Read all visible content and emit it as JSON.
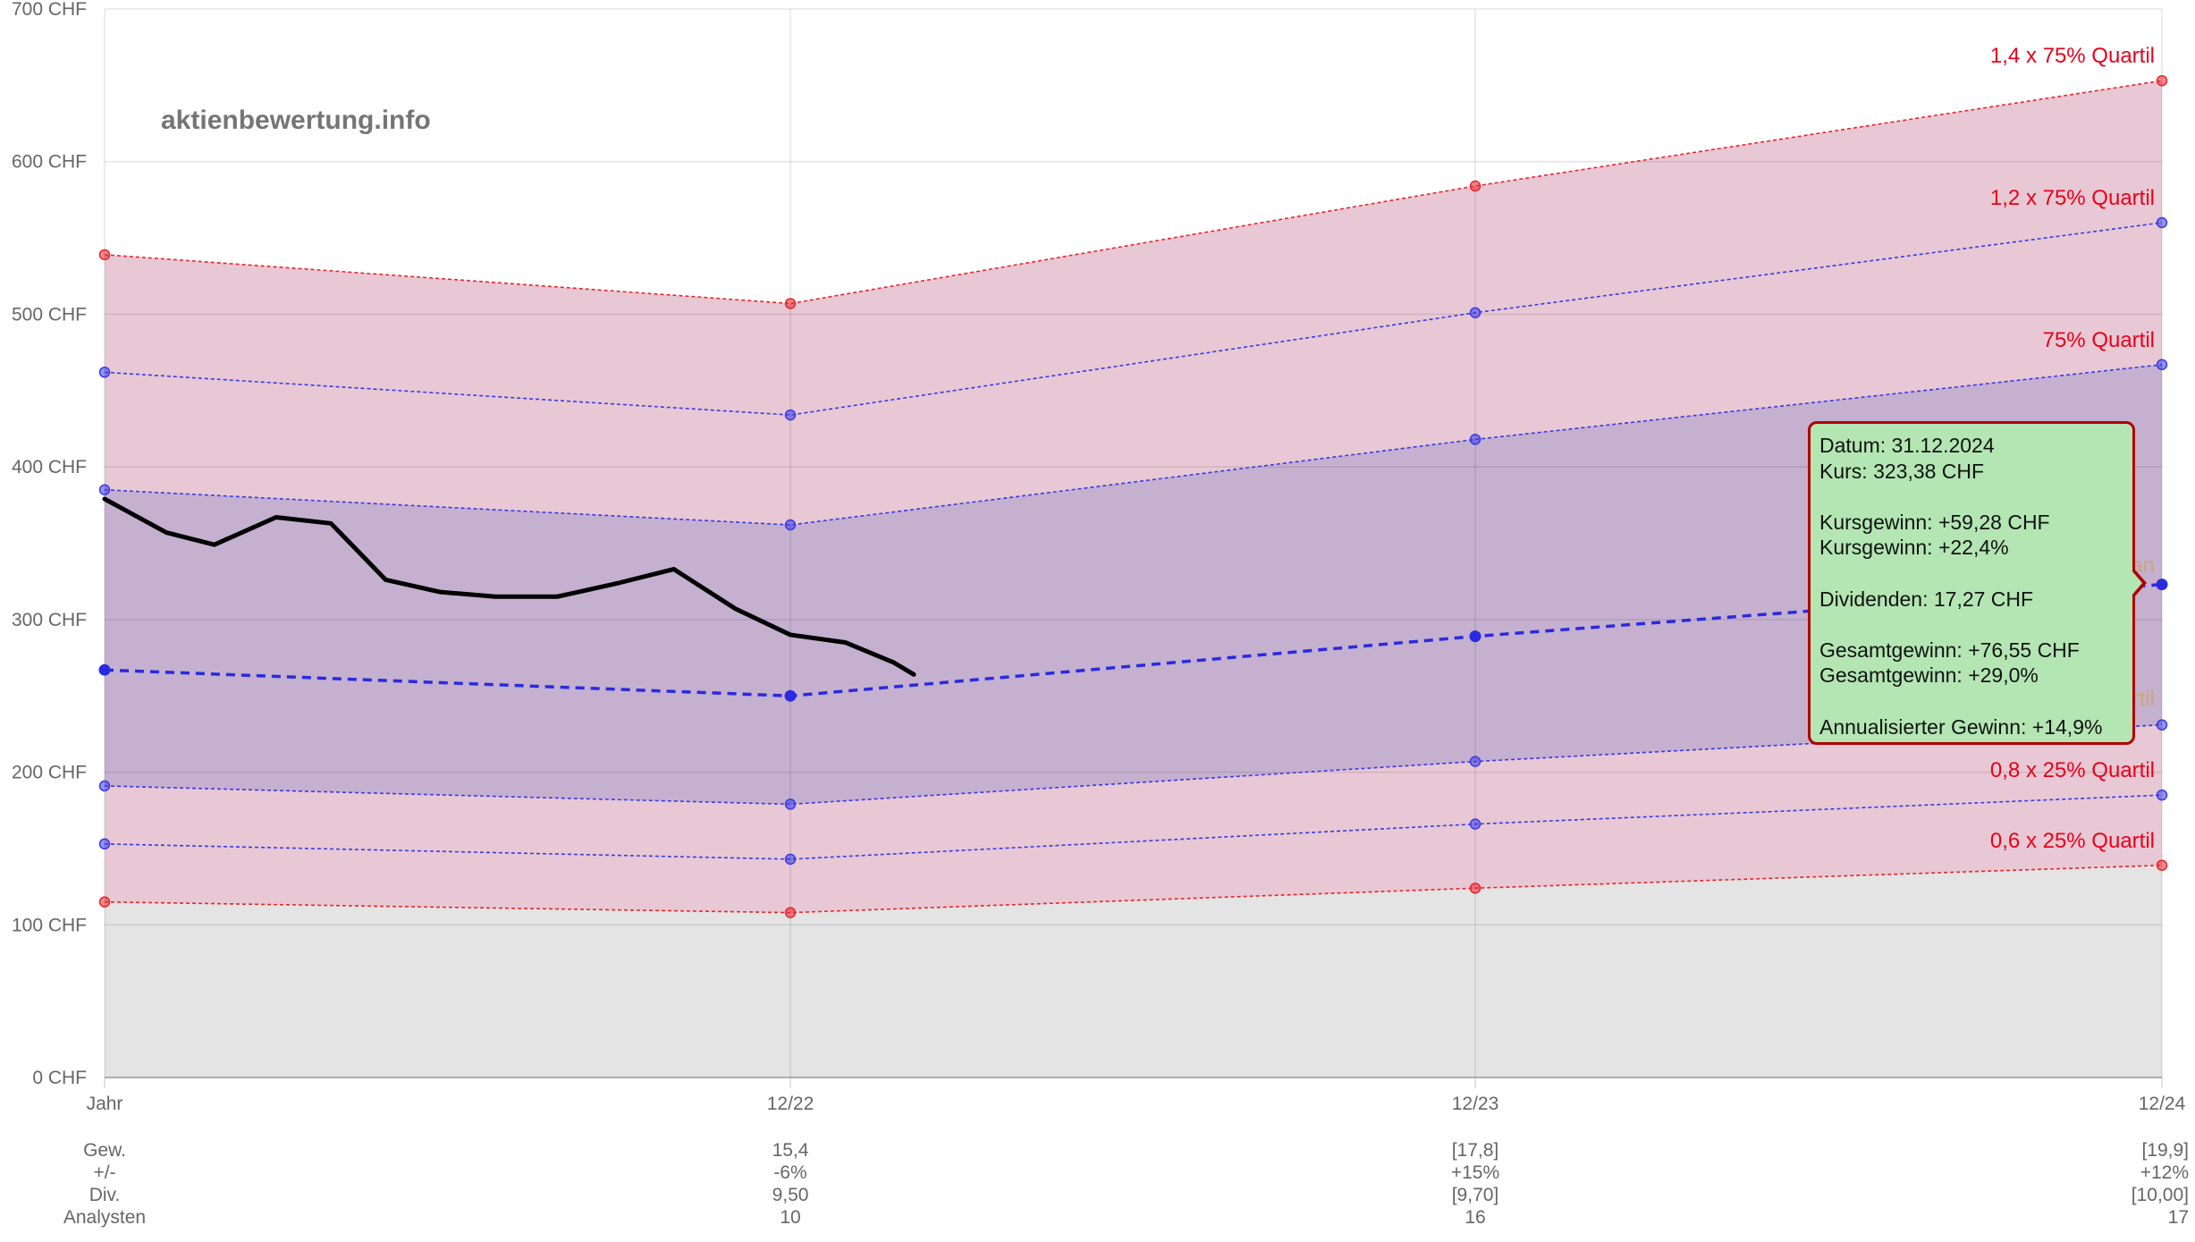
{
  "watermark": "aktienbewertung.info",
  "tooltip": {
    "lines": [
      "Datum: 31.12.2024",
      "Kurs: 323,38 CHF",
      "",
      "Kursgewinn: +59,28 CHF",
      "Kursgewinn: +22,4%",
      "",
      "Dividenden: 17,27 CHF",
      "",
      "Gesamtgewinn: +76,55 CHF",
      "Gesamtgewinn: +29,0%",
      "",
      "Annualisierter Gewinn: +14,9%"
    ]
  },
  "footer": {
    "row_labels": [
      "Gew.",
      "+/-",
      "Div.",
      "Analysten"
    ],
    "columns": [
      {
        "values": [
          "15,4",
          "-6%",
          "9,50",
          "10"
        ]
      },
      {
        "values": [
          "[17,8]",
          "+15%",
          "[9,70]",
          "16"
        ]
      },
      {
        "values": [
          "[19,9]",
          "+12%",
          "[10,00]",
          "17"
        ]
      }
    ]
  },
  "chart_data": {
    "type": "line",
    "x_labels": [
      "Jahr",
      "12/22",
      "12/23",
      "12/24"
    ],
    "y_ticks": [
      "0 CHF",
      "100 CHF",
      "200 CHF",
      "300 CHF",
      "400 CHF",
      "500 CHF",
      "600 CHF",
      "700 CHF"
    ],
    "ylim": [
      0,
      700
    ],
    "grid": true,
    "colors": {
      "band_fill": "#e8c8d4",
      "inner_fill": "#c5b0d0",
      "base_fill": "#e4e4e4",
      "red_line": "#e8262c",
      "blue_line": "#3a3ae8",
      "median_line": "#2a2ae0",
      "price_line": "#000000",
      "label_red": "#e8001c",
      "label_muted": "#c8a878"
    },
    "bands": [
      {
        "name": "1,4 x 75% Quartil",
        "color": "red",
        "values": [
          539,
          507,
          584,
          653
        ]
      },
      {
        "name": "1,2 x 75% Quartil",
        "color": "blue",
        "values": [
          462,
          434,
          501,
          560
        ]
      },
      {
        "name": "75% Quartil",
        "color": "blue",
        "values": [
          385,
          362,
          418,
          467
        ]
      },
      {
        "name": "25% Quartil",
        "color": "blue",
        "values": [
          191,
          179,
          207,
          231
        ]
      },
      {
        "name": "0,8 x 25% Quartil",
        "color": "blue",
        "values": [
          153,
          143,
          166,
          185
        ]
      },
      {
        "name": "0,6 x 25% Quartil",
        "color": "red",
        "values": [
          115,
          108,
          124,
          139
        ]
      }
    ],
    "median": {
      "name": "Median",
      "values": [
        267,
        250,
        289,
        323
      ]
    },
    "price": {
      "name": "Kurs",
      "x": [
        0,
        0.09,
        0.16,
        0.25,
        0.33,
        0.41,
        0.49,
        0.57,
        0.66,
        0.75,
        0.83,
        0.92,
        1.0,
        1.08,
        1.15,
        1.18
      ],
      "values": [
        379,
        357,
        349,
        367,
        363,
        326,
        318,
        315,
        315,
        324,
        333,
        307,
        290,
        285,
        272,
        264
      ]
    }
  }
}
